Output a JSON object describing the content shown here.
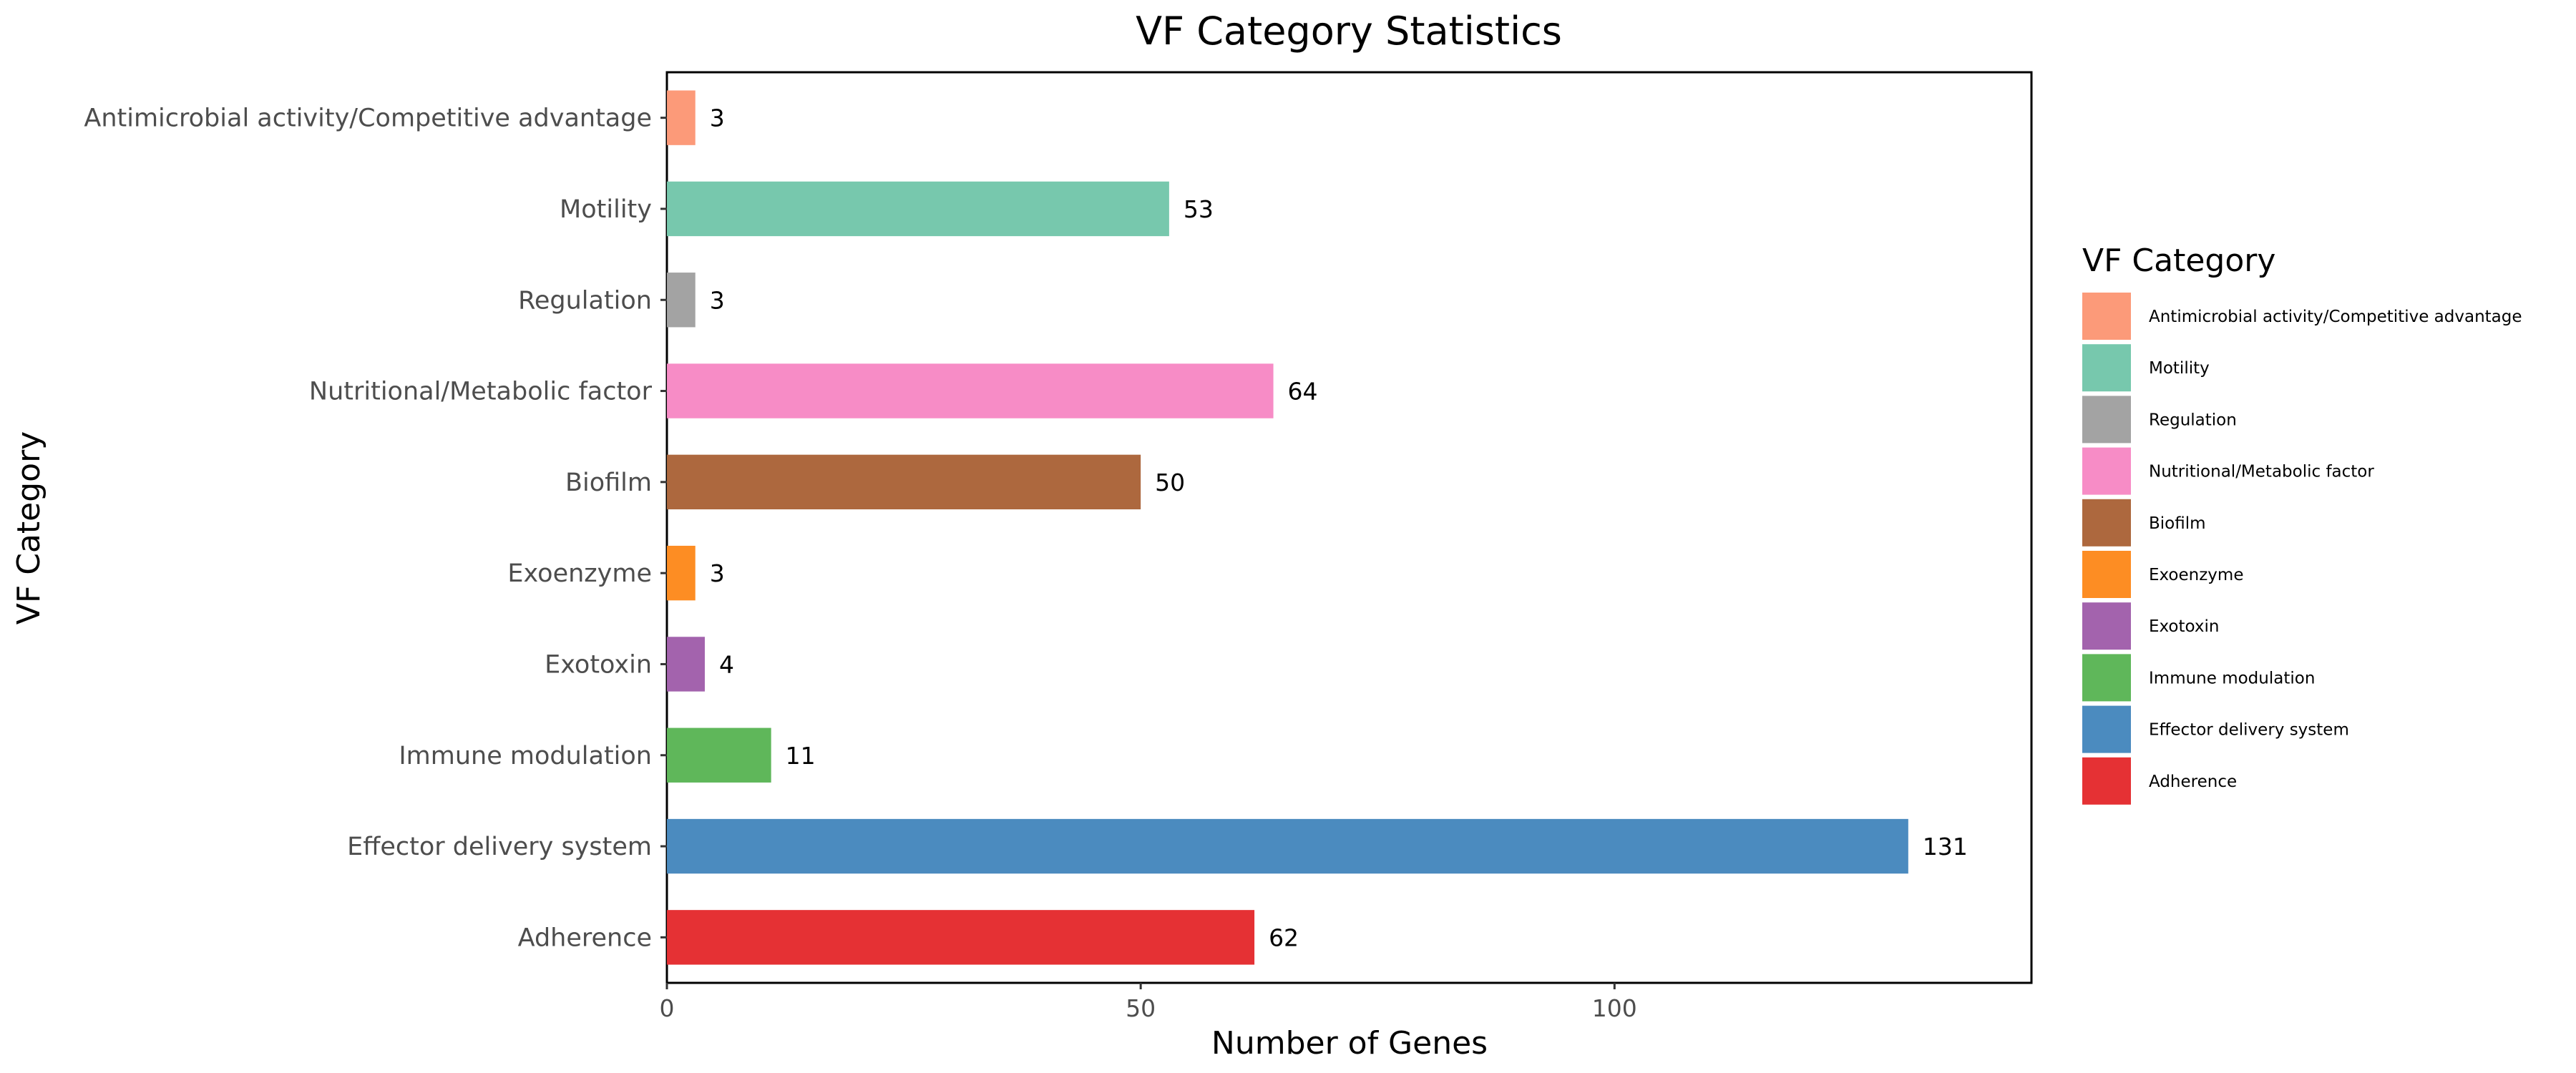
{
  "chart_data": {
    "type": "bar",
    "orientation": "horizontal",
    "title": "VF Category Statistics",
    "xlabel": "Number of Genes",
    "ylabel": "VF Category",
    "xlim": [
      0,
      144
    ],
    "x_ticks": [
      0,
      50,
      100
    ],
    "grid": false,
    "categories": [
      "Antimicrobial activity/Competitive advantage",
      "Motility",
      "Regulation",
      "Nutritional/Metabolic factor",
      "Biofilm",
      "Exoenzyme",
      "Exotoxin",
      "Immune modulation",
      "Effector delivery system",
      "Adherence"
    ],
    "values": [
      3,
      53,
      3,
      64,
      50,
      3,
      4,
      11,
      131,
      62
    ],
    "colors": [
      "#fc9a79",
      "#77c8ad",
      "#a3a3a3",
      "#f78cc6",
      "#ad683e",
      "#fd8d23",
      "#a363ad",
      "#5fb75a",
      "#4b8bbf",
      "#e53134"
    ],
    "legend": {
      "title": "VF Category",
      "position": "right",
      "entries": [
        "Antimicrobial activity/Competitive advantage",
        "Motility",
        "Regulation",
        "Nutritional/Metabolic factor",
        "Biofilm",
        "Exoenzyme",
        "Exotoxin",
        "Immune modulation",
        "Effector delivery system",
        "Adherence"
      ]
    }
  }
}
